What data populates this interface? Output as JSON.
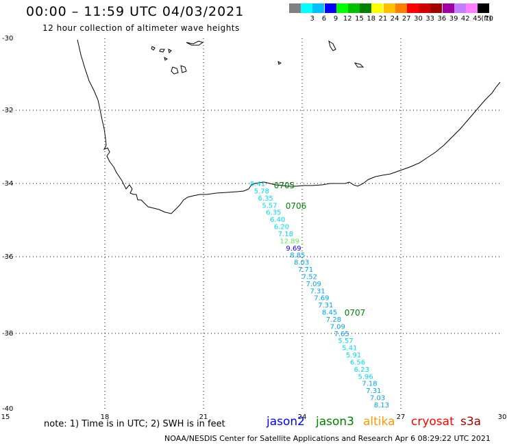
{
  "title": "00:00 – 11:59 UTC 04/03/2021",
  "subtitle": "12 hour collection of altimeter wave heights",
  "legend": {
    "unit": "(ft)",
    "colors": [
      "#808080",
      "#00ffff",
      "#00c0ff",
      "#0000ff",
      "#00ff00",
      "#00c000",
      "#008000",
      "#ffff00",
      "#ffc000",
      "#ff8000",
      "#ff0000",
      "#d00000",
      "#a00000",
      "#a000a0",
      "#c080ff",
      "#ff80ff",
      "#000000"
    ],
    "labels": [
      "",
      "3",
      "6",
      "9",
      "12",
      "15",
      "18",
      "21",
      "24",
      "27",
      "30",
      "33",
      "36",
      "39",
      "42",
      "45",
      "70"
    ]
  },
  "axes": {
    "lon": {
      "min": 15,
      "max": 30,
      "ticks": [
        "15",
        "18",
        "21",
        "24",
        "27",
        "30"
      ]
    },
    "lat": {
      "min": -40,
      "max": -30,
      "ticks": [
        "-30",
        "-32",
        "-34",
        "-36",
        "-38",
        "-40"
      ]
    },
    "grid": true
  },
  "passes": [
    {
      "label": "0705",
      "color": "#008000"
    },
    {
      "label": "0706",
      "color": "#008000"
    },
    {
      "label": "0707",
      "color": "#008000"
    }
  ],
  "track": [
    {
      "v": "8.41",
      "c": "#00d8f0"
    },
    {
      "v": "5.78",
      "c": "#00d8f0"
    },
    {
      "v": "6.35",
      "c": "#00d8f0"
    },
    {
      "v": "5.57",
      "c": "#00d8f0"
    },
    {
      "v": "6.35",
      "c": "#00d8f0"
    },
    {
      "v": "6.40",
      "c": "#00d8f0"
    },
    {
      "v": "6.20",
      "c": "#00d8f0"
    },
    {
      "v": "7.18",
      "c": "#00d8f0"
    },
    {
      "v": "12.89",
      "c": "#66e666"
    },
    {
      "v": "9.69",
      "c": "#0000ff"
    },
    {
      "v": "8.85",
      "c": "#00a0f0"
    },
    {
      "v": "8.03",
      "c": "#00a0f0"
    },
    {
      "v": "7.71",
      "c": "#00a0f0"
    },
    {
      "v": "7.52",
      "c": "#00a0f0"
    },
    {
      "v": "7.09",
      "c": "#00a0f0"
    },
    {
      "v": "7.31",
      "c": "#00a0f0"
    },
    {
      "v": "7.69",
      "c": "#00a0f0"
    },
    {
      "v": "7.31",
      "c": "#00a0f0"
    },
    {
      "v": "8.45",
      "c": "#00a0f0"
    },
    {
      "v": "7.28",
      "c": "#00a0f0"
    },
    {
      "v": "7.09",
      "c": "#00a0f0"
    },
    {
      "v": "7.65",
      "c": "#00a0f0"
    },
    {
      "v": "5.57",
      "c": "#00d8f0"
    },
    {
      "v": "5.41",
      "c": "#00d8f0"
    },
    {
      "v": "5.91",
      "c": "#00d8f0"
    },
    {
      "v": "6.56",
      "c": "#00d8f0"
    },
    {
      "v": "6.23",
      "c": "#00d8f0"
    },
    {
      "v": "5.96",
      "c": "#00d8f0"
    },
    {
      "v": "7.18",
      "c": "#00a0f0"
    },
    {
      "v": "7.31",
      "c": "#00a0f0"
    },
    {
      "v": "7.03",
      "c": "#00a0f0"
    },
    {
      "v": "8.13",
      "c": "#00a0f0"
    }
  ],
  "note": "note:  1) Time is in UTC;  2) SWH is in feet",
  "satellites": [
    {
      "name": "jason2",
      "color": "#0000ff"
    },
    {
      "name": "jason3",
      "color": "#008000"
    },
    {
      "name": "altika",
      "color": "#ff9900"
    },
    {
      "name": "cryosat",
      "color": "#ff0000"
    },
    {
      "name": "s3a",
      "color": "#a00000"
    }
  ],
  "footer": "NOAA/NESDIS Center for Satellite Applications and Research    Apr  6 08:29:22 UTC 2021"
}
